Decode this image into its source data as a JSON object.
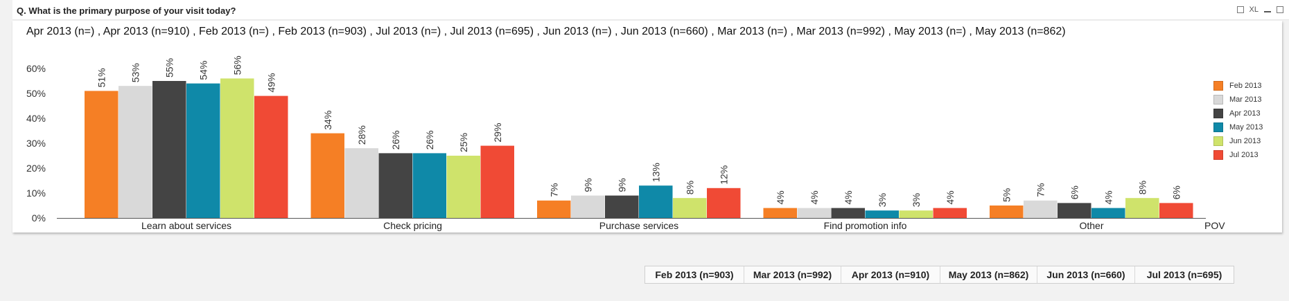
{
  "question": "Q. What is the primary purpose of your visit today?",
  "window_controls": {
    "xl_label": "XL"
  },
  "subtitle": "Apr 2013 (n=) , Apr 2013 (n=910) , Feb 2013 (n=) , Feb 2013 (n=903) , Jul 2013 (n=) , Jul 2013 (n=695) , Jun 2013 (n=) , Jun 2013 (n=660) , Mar 2013 (n=) , Mar 2013 (n=992) , May 2013 (n=) , May 2013 (n=862)",
  "chart_data": {
    "type": "bar",
    "categories": [
      "Learn about services",
      "Check pricing",
      "Purchase services",
      "Find promotion info",
      "Other"
    ],
    "extra_axis_label": "POV",
    "series": [
      {
        "name": "Feb 2013",
        "color": "#f57f25",
        "values": [
          51,
          34,
          7,
          4,
          5
        ],
        "labels": [
          "51%",
          "34%",
          "7%",
          "4%",
          "5%"
        ]
      },
      {
        "name": "Mar 2013",
        "color": "#d9d9d9",
        "values": [
          53,
          28,
          9,
          4,
          7
        ],
        "labels": [
          "53%",
          "28%",
          "9%",
          "4%",
          "7%"
        ]
      },
      {
        "name": "Apr 2013",
        "color": "#444444",
        "values": [
          55,
          26,
          9,
          4,
          6
        ],
        "labels": [
          "55%",
          "26%",
          "9%",
          "4%",
          "6%"
        ]
      },
      {
        "name": "May 2013",
        "color": "#0f89a8",
        "values": [
          54,
          26,
          13,
          3,
          4
        ],
        "labels": [
          "54%",
          "26%",
          "13%",
          "3%",
          "4%"
        ]
      },
      {
        "name": "Jun 2013",
        "color": "#cfe36b",
        "values": [
          56,
          25,
          8,
          3,
          8
        ],
        "labels": [
          "56%",
          "25%",
          "8%",
          "3%",
          "8%"
        ]
      },
      {
        "name": "Jul 2013",
        "color": "#f04a35",
        "values": [
          49,
          29,
          12,
          4,
          6
        ],
        "labels": [
          "49%",
          "29%",
          "12%",
          "4%",
          "6%"
        ]
      }
    ],
    "yticks": [
      "0%",
      "10%",
      "20%",
      "30%",
      "40%",
      "50%",
      "60%"
    ],
    "ylim": [
      0,
      60
    ],
    "grid": false,
    "legend": "right"
  },
  "footer": [
    "Feb 2013  (n=903)",
    "Mar 2013  (n=992)",
    "Apr 2013  (n=910)",
    "May 2013  (n=862)",
    "Jun 2013  (n=660)",
    "Jul 2013  (n=695)"
  ]
}
